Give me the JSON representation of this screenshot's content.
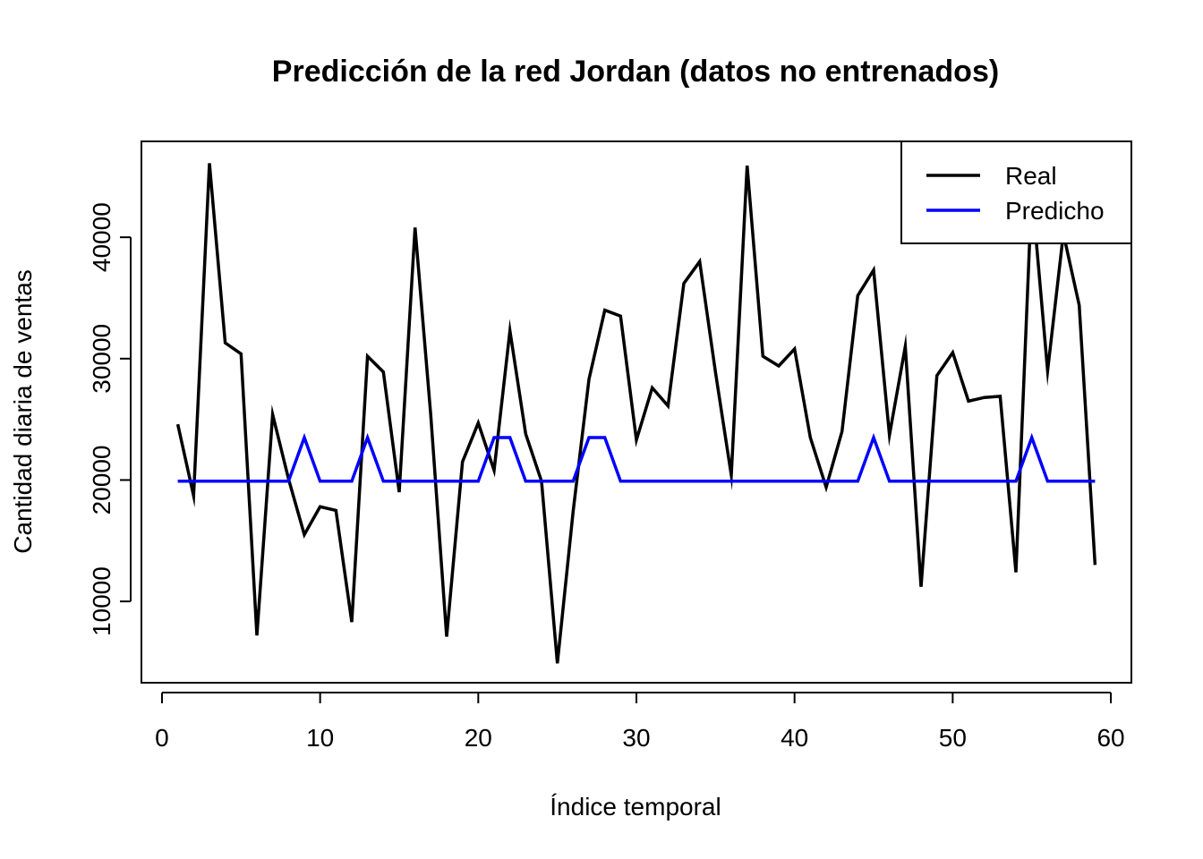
{
  "chart_data": {
    "type": "line",
    "title": "Predicción de la red Jordan (datos no entrenados)",
    "xlabel": "Índice temporal",
    "ylabel": "Cantidad diaria de ventas",
    "xlim": [
      -1.3,
      61.3
    ],
    "ylim": [
      3300,
      47900
    ],
    "x_ticks": [
      0,
      10,
      20,
      30,
      40,
      50,
      60
    ],
    "y_ticks": [
      10000,
      20000,
      30000,
      40000
    ],
    "legend_position": "top-right",
    "grid": false,
    "x": [
      1,
      2,
      3,
      4,
      5,
      6,
      7,
      8,
      9,
      10,
      11,
      12,
      13,
      14,
      15,
      16,
      17,
      18,
      19,
      20,
      21,
      22,
      23,
      24,
      25,
      26,
      27,
      28,
      29,
      30,
      31,
      32,
      33,
      34,
      35,
      36,
      37,
      38,
      39,
      40,
      41,
      42,
      43,
      44,
      45,
      46,
      47,
      48,
      49,
      50,
      51,
      52,
      53,
      54,
      55,
      56,
      57,
      58,
      59
    ],
    "series": [
      {
        "name": "Real",
        "color": "#000000",
        "values": [
          24600,
          18700,
          46100,
          31300,
          30400,
          7200,
          25400,
          20100,
          15500,
          17800,
          17500,
          8300,
          30200,
          28900,
          19000,
          40800,
          25300,
          7100,
          21500,
          24700,
          20800,
          32300,
          23800,
          19900,
          4900,
          17400,
          28300,
          34000,
          33500,
          23300,
          27600,
          26100,
          36200,
          38000,
          28900,
          20400,
          45900,
          30200,
          29400,
          30800,
          23500,
          19400,
          24000,
          35200,
          37300,
          23700,
          31000,
          11200,
          28600,
          30500,
          26500,
          26800,
          26900,
          12400,
          43900,
          29000,
          40300,
          34400,
          13000
        ]
      },
      {
        "name": "Predicho",
        "color": "#0000ff",
        "values": [
          19900,
          19900,
          19900,
          19900,
          19900,
          19900,
          19900,
          19900,
          23500,
          19900,
          19900,
          19900,
          23500,
          19900,
          19900,
          19900,
          19900,
          19900,
          19900,
          19900,
          23500,
          23500,
          19900,
          19900,
          19900,
          19900,
          23500,
          23500,
          19900,
          19900,
          19900,
          19900,
          19900,
          19900,
          19900,
          19900,
          19900,
          19900,
          19900,
          19900,
          19900,
          19900,
          19900,
          19900,
          23500,
          19900,
          19900,
          19900,
          19900,
          19900,
          19900,
          19900,
          19900,
          19900,
          23500,
          19900,
          19900,
          19900,
          19900
        ]
      }
    ]
  }
}
